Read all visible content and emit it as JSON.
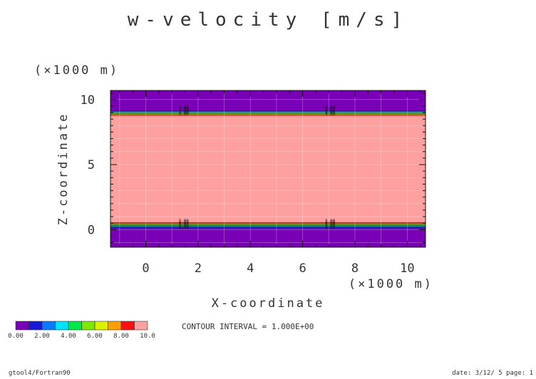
{
  "chart_data": {
    "type": "heatmap",
    "title": "w-velocity [m/s]",
    "xlabel": "X-coordinate",
    "ylabel": "Z-coordinate",
    "x_unit": "(×1000 m)",
    "y_unit": "(×1000 m)",
    "xlim": [
      -1.35,
      10.7
    ],
    "ylim": [
      -1.35,
      10.7
    ],
    "x_ticks": [
      0,
      2,
      4,
      6,
      8,
      10
    ],
    "y_ticks": [
      0,
      5,
      10
    ],
    "grid": true,
    "colorbar": {
      "colors": [
        "#7a00b8",
        "#1818d8",
        "#0a78ff",
        "#00e0ff",
        "#00e84a",
        "#7ee800",
        "#dcf000",
        "#ffa000",
        "#ff1010",
        "#ffa0a0"
      ],
      "labels": [
        "0.00",
        "2.00",
        "4.00",
        "6.00",
        "8.00",
        "10.0"
      ]
    },
    "bands": [
      {
        "z": [
          9.15,
          10.7
        ],
        "value": 0
      },
      {
        "z": [
          9.1,
          9.15
        ],
        "value": 1
      },
      {
        "z": [
          9.05,
          9.1
        ],
        "value": 2
      },
      {
        "z": [
          9.0,
          9.05
        ],
        "value": 3
      },
      {
        "z": [
          8.95,
          9.0
        ],
        "value": 4
      },
      {
        "z": [
          8.9,
          8.95
        ],
        "value": 5
      },
      {
        "z": [
          8.85,
          8.9
        ],
        "value": 6
      },
      {
        "z": [
          8.8,
          8.85
        ],
        "value": 7
      },
      {
        "z": [
          8.75,
          8.8
        ],
        "value": 8
      },
      {
        "z": [
          0.55,
          8.75
        ],
        "value": 9
      },
      {
        "z": [
          0.5,
          0.55
        ],
        "value": 8
      },
      {
        "z": [
          0.45,
          0.5
        ],
        "value": 7
      },
      {
        "z": [
          0.4,
          0.45
        ],
        "value": 6
      },
      {
        "z": [
          0.35,
          0.4
        ],
        "value": 5
      },
      {
        "z": [
          0.3,
          0.35
        ],
        "value": 4
      },
      {
        "z": [
          0.25,
          0.3
        ],
        "value": 3
      },
      {
        "z": [
          0.2,
          0.25
        ],
        "value": 2
      },
      {
        "z": [
          0.1,
          0.2
        ],
        "value": 1
      },
      {
        "z": [
          -1.35,
          0.1
        ],
        "value": 0
      }
    ],
    "contour_labels": [
      {
        "x": 1.45,
        "z": 9.0,
        "text": "3.00"
      },
      {
        "x": 7.05,
        "z": 9.0,
        "text": "3.00"
      },
      {
        "x": 1.45,
        "z": 0.3,
        "text": "3.00"
      },
      {
        "x": 7.05,
        "z": 0.3,
        "text": "3.00"
      }
    ],
    "contour_interval_text": "CONTOUR INTERVAL = 1.000E+00"
  },
  "footer": {
    "left": "gtool4/Fortran90",
    "right": "date: 3/12/ 5 page: 1"
  }
}
